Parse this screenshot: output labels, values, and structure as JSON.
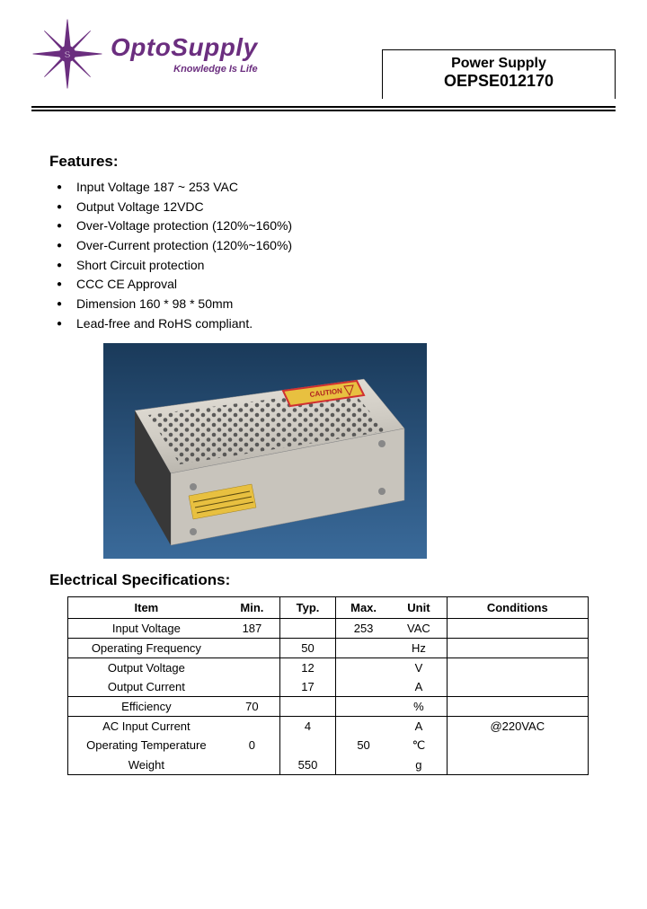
{
  "brand": {
    "name": "OptoSupply",
    "tagline": "Knowledge Is Life",
    "logo_color": "#6b2e7f"
  },
  "title_box": {
    "product_type": "Power Supply",
    "part_number": "OEPSE012170"
  },
  "features": {
    "heading": "Features:",
    "items": [
      "Input Voltage 187 ~ 253 VAC",
      "Output Voltage 12VDC",
      "Over-Voltage protection (120%~160%)",
      "Over-Current protection (120%~160%)",
      "Short Circuit protection",
      "CCC CE Approval",
      "Dimension 160 * 98 * 50mm",
      "Lead-free and RoHS compliant."
    ]
  },
  "product_image": {
    "background_gradient_top": "#1a3a5a",
    "background_gradient_bottom": "#2a5a8a",
    "enclosure_color": "#d8d4cc",
    "enclosure_shadow": "#9a968e",
    "label_color": "#e8c040",
    "caution_outline": "#d03030"
  },
  "specs": {
    "heading": "Electrical Specifications:",
    "columns": [
      "Item",
      "Min.",
      "Typ.",
      "Max.",
      "Unit",
      "Conditions"
    ],
    "groups": [
      {
        "rows": [
          {
            "item": "Input Voltage",
            "min": "187",
            "typ": "",
            "max": "253",
            "unit": "VAC",
            "cond": ""
          }
        ]
      },
      {
        "rows": [
          {
            "item": "Operating Frequency",
            "min": "",
            "typ": "50",
            "max": "",
            "unit": "Hz",
            "cond": ""
          }
        ]
      },
      {
        "rows": [
          {
            "item": "Output Voltage",
            "min": "",
            "typ": "12",
            "max": "",
            "unit": "V",
            "cond": ""
          },
          {
            "item": "Output Current",
            "min": "",
            "typ": "17",
            "max": "",
            "unit": "A",
            "cond": ""
          }
        ]
      },
      {
        "rows": [
          {
            "item": "Efficiency",
            "min": "70",
            "typ": "",
            "max": "",
            "unit": "%",
            "cond": ""
          }
        ]
      },
      {
        "rows": [
          {
            "item": "AC Input Current",
            "min": "",
            "typ": "4",
            "max": "",
            "unit": "A",
            "cond": "@220VAC"
          },
          {
            "item": "Operating Temperature",
            "min": "0",
            "typ": "",
            "max": "50",
            "unit": "℃",
            "cond": ""
          },
          {
            "item": "Weight",
            "min": "",
            "typ": "550",
            "max": "",
            "unit": "g",
            "cond": ""
          }
        ]
      }
    ]
  }
}
